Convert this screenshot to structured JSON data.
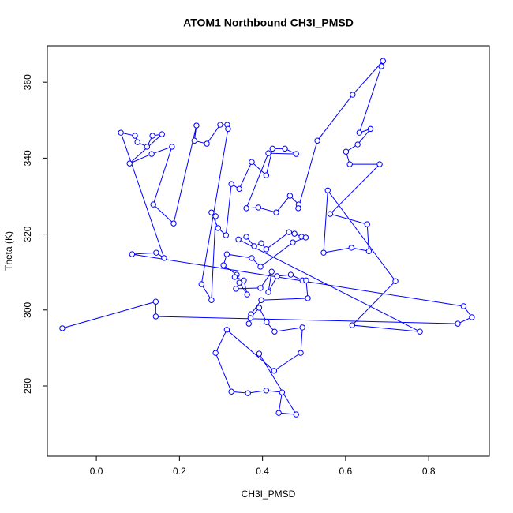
{
  "chart_data": {
    "type": "line",
    "markers": true,
    "title": "ATOM1 Northbound CH3I_PMSD",
    "x_label": "CH3I_PMSD",
    "y_label": "Theta (K)",
    "color": "#0000ff",
    "x": [
      -0.082,
      0.143,
      0.143,
      0.87,
      0.904,
      0.884,
      0.086,
      0.144,
      0.163,
      0.059,
      0.093,
      0.099,
      0.122,
      0.135,
      0.158,
      0.08,
      0.133,
      0.182,
      0.137,
      0.186,
      0.241,
      0.236,
      0.266,
      0.298,
      0.315,
      0.317,
      0.253,
      0.277,
      0.287,
      0.277,
      0.293,
      0.312,
      0.325,
      0.344,
      0.374,
      0.409,
      0.424,
      0.454,
      0.481,
      0.414,
      0.361,
      0.39,
      0.433,
      0.466,
      0.487,
      0.486,
      0.532,
      0.617,
      0.69,
      0.686,
      0.633,
      0.66,
      0.629,
      0.601,
      0.61,
      0.682,
      0.563,
      0.652,
      0.656,
      0.614,
      0.547,
      0.557,
      0.72,
      0.616,
      0.779,
      0.342,
      0.361,
      0.38,
      0.397,
      0.409,
      0.464,
      0.477,
      0.494,
      0.504,
      0.473,
      0.395,
      0.374,
      0.314,
      0.306,
      0.338,
      0.333,
      0.355,
      0.363,
      0.344,
      0.336,
      0.395,
      0.422,
      0.414,
      0.435,
      0.468,
      0.496,
      0.505,
      0.509,
      0.397,
      0.372,
      0.367,
      0.371,
      0.392,
      0.41,
      0.429,
      0.496,
      0.492,
      0.428,
      0.314,
      0.287,
      0.325,
      0.365,
      0.409,
      0.447,
      0.439,
      0.481,
      0.392
    ],
    "values": [
      295.2,
      302.2,
      298.3,
      296.4,
      298.1,
      301.0,
      314.7,
      315.1,
      313.7,
      346.7,
      345.9,
      344.2,
      343.0,
      345.9,
      346.3,
      338.6,
      341.1,
      343.0,
      327.8,
      322.8,
      348.6,
      344.6,
      343.8,
      348.8,
      348.8,
      347.7,
      306.8,
      302.6,
      324.7,
      325.7,
      321.6,
      319.7,
      333.2,
      331.9,
      339.0,
      335.5,
      342.5,
      342.5,
      341.1,
      341.3,
      326.8,
      327.0,
      325.7,
      330.1,
      327.8,
      326.8,
      344.6,
      356.7,
      365.6,
      364.2,
      346.7,
      347.7,
      343.6,
      341.7,
      338.4,
      338.4,
      325.3,
      322.6,
      315.5,
      316.4,
      315.1,
      331.5,
      307.6,
      296.0,
      294.3,
      318.6,
      319.3,
      316.8,
      317.6,
      316.0,
      320.5,
      320.1,
      319.3,
      319.1,
      317.8,
      311.4,
      313.7,
      314.7,
      311.8,
      309.3,
      308.7,
      307.8,
      304.1,
      307.2,
      305.6,
      305.8,
      310.1,
      304.7,
      308.9,
      309.3,
      307.8,
      307.8,
      303.1,
      302.6,
      298.9,
      296.4,
      297.9,
      300.6,
      296.8,
      294.3,
      295.4,
      288.7,
      284.0,
      294.8,
      288.7,
      278.5,
      278.1,
      278.8,
      278.3,
      272.9,
      272.5,
      288.5
    ],
    "xlim": [
      -0.118,
      0.946
    ],
    "ylim": [
      261.5,
      369.6
    ],
    "xticks": [
      {
        "value": 0,
        "label": "0.0"
      },
      0.2,
      0.4,
      0.6,
      0.8
    ],
    "yticks": [
      280,
      300,
      320,
      340,
      360
    ]
  }
}
